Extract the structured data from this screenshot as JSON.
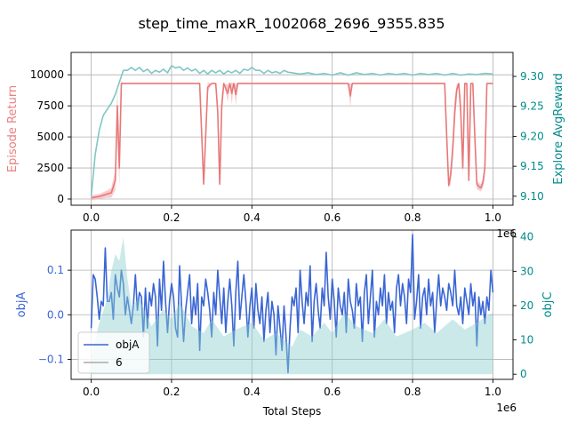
{
  "figure": {
    "title": "step_time_maxR_1002068_2696_9355.835"
  },
  "chart_data": [
    {
      "type": "line",
      "panel": "top",
      "xlabel": "",
      "x_exponent_label": "1e6",
      "xlim": [
        -0.05,
        1.05
      ],
      "xticks": [
        0.0,
        0.2,
        0.4,
        0.6,
        0.8,
        1.0
      ],
      "xtick_labels": [
        "0.0",
        "0.2",
        "0.4",
        "0.6",
        "0.8",
        "1.0"
      ],
      "grid": true,
      "left_axis": {
        "ylabel": "Episode Return",
        "color": "#e88080",
        "ylim": [
          -500,
          11800
        ],
        "ticks": [
          0,
          2500,
          5000,
          7500,
          10000
        ],
        "tick_labels": [
          "0",
          "2500",
          "5000",
          "7500",
          "10000"
        ]
      },
      "right_axis": {
        "ylabel": "Explore AvgReward",
        "color": "#008b8b",
        "ylim": [
          9.085,
          9.34
        ],
        "ticks": [
          9.1,
          9.15,
          9.2,
          9.25,
          9.3
        ],
        "tick_labels": [
          "9.10",
          "9.15",
          "9.20",
          "9.25",
          "9.30"
        ]
      },
      "series": [
        {
          "axis": "left",
          "color": "#e87878",
          "band_color": "#f4b8bc",
          "x": [
            0.0,
            0.01,
            0.02,
            0.03,
            0.04,
            0.05,
            0.06,
            0.065,
            0.07,
            0.075,
            0.08,
            0.1,
            0.15,
            0.2,
            0.25,
            0.27,
            0.28,
            0.29,
            0.3,
            0.31,
            0.315,
            0.32,
            0.325,
            0.33,
            0.34,
            0.345,
            0.35,
            0.355,
            0.36,
            0.365,
            0.37,
            0.38,
            0.5,
            0.6,
            0.64,
            0.645,
            0.65,
            0.7,
            0.8,
            0.88,
            0.885,
            0.89,
            0.895,
            0.9,
            0.905,
            0.91,
            0.915,
            0.92,
            0.925,
            0.93,
            0.935,
            0.94,
            0.945,
            0.95,
            0.955,
            0.96,
            0.965,
            0.97,
            0.975,
            0.98,
            0.985,
            0.99,
            0.995,
            1.0
          ],
          "y": [
            100,
            150,
            200,
            300,
            400,
            500,
            1500,
            7500,
            2500,
            9300,
            9300,
            9300,
            9300,
            9300,
            9300,
            9300,
            1200,
            9000,
            9300,
            9300,
            7000,
            1200,
            7500,
            9300,
            8500,
            9300,
            8500,
            9300,
            8400,
            9300,
            9300,
            9300,
            9300,
            9300,
            9300,
            8300,
            9300,
            9300,
            9300,
            9300,
            5000,
            1100,
            2000,
            4000,
            7000,
            8800,
            9300,
            7000,
            2500,
            9300,
            9300,
            1500,
            9300,
            9300,
            5000,
            1200,
            1000,
            900,
            1300,
            2500,
            9300,
            9300,
            9300,
            9300
          ],
          "band": [
            200,
            200,
            200,
            250,
            300,
            400,
            800,
            1500,
            1500,
            200,
            0,
            0,
            0,
            0,
            0,
            0,
            200,
            400,
            0,
            0,
            800,
            200,
            1000,
            0,
            700,
            0,
            900,
            0,
            900,
            0,
            0,
            0,
            0,
            0,
            0,
            1000,
            0,
            0,
            0,
            0,
            800,
            200,
            800,
            1000,
            1200,
            500,
            0,
            1200,
            700,
            0,
            0,
            400,
            0,
            0,
            1200,
            400,
            300,
            300,
            400,
            800,
            0,
            0,
            0,
            0
          ]
        },
        {
          "axis": "right",
          "color": "#7fc7c5",
          "x": [
            0.0,
            0.01,
            0.02,
            0.03,
            0.04,
            0.05,
            0.06,
            0.07,
            0.08,
            0.09,
            0.1,
            0.11,
            0.12,
            0.13,
            0.14,
            0.15,
            0.16,
            0.17,
            0.18,
            0.19,
            0.2,
            0.21,
            0.22,
            0.23,
            0.24,
            0.25,
            0.26,
            0.27,
            0.28,
            0.29,
            0.3,
            0.31,
            0.32,
            0.33,
            0.34,
            0.35,
            0.36,
            0.37,
            0.38,
            0.39,
            0.4,
            0.41,
            0.42,
            0.43,
            0.44,
            0.45,
            0.46,
            0.47,
            0.48,
            0.49,
            0.5,
            0.52,
            0.54,
            0.56,
            0.58,
            0.6,
            0.62,
            0.64,
            0.66,
            0.68,
            0.7,
            0.72,
            0.74,
            0.76,
            0.78,
            0.8,
            0.82,
            0.84,
            0.86,
            0.88,
            0.9,
            0.92,
            0.94,
            0.96,
            0.98,
            1.0
          ],
          "y": [
            9.1,
            9.17,
            9.21,
            9.235,
            9.245,
            9.255,
            9.27,
            9.29,
            9.31,
            9.31,
            9.315,
            9.31,
            9.315,
            9.308,
            9.312,
            9.305,
            9.31,
            9.307,
            9.312,
            9.306,
            9.318,
            9.314,
            9.316,
            9.31,
            9.314,
            9.309,
            9.312,
            9.305,
            9.31,
            9.304,
            9.31,
            9.306,
            9.31,
            9.304,
            9.309,
            9.306,
            9.31,
            9.305,
            9.312,
            9.31,
            9.315,
            9.31,
            9.31,
            9.305,
            9.31,
            9.306,
            9.308,
            9.305,
            9.31,
            9.307,
            9.306,
            9.304,
            9.306,
            9.303,
            9.305,
            9.302,
            9.306,
            9.302,
            9.306,
            9.303,
            9.305,
            9.302,
            9.305,
            9.303,
            9.305,
            9.302,
            9.305,
            9.303,
            9.305,
            9.302,
            9.305,
            9.302,
            9.304,
            9.303,
            9.305,
            9.304
          ]
        }
      ]
    },
    {
      "type": "line",
      "panel": "bottom",
      "xlabel": "Total Steps",
      "x_exponent_label": "1e6",
      "xlim": [
        -0.05,
        1.05
      ],
      "xticks": [
        0.0,
        0.2,
        0.4,
        0.6,
        0.8,
        1.0
      ],
      "xtick_labels": [
        "0.0",
        "0.2",
        "0.4",
        "0.6",
        "0.8",
        "1.0"
      ],
      "grid": true,
      "left_axis": {
        "ylabel": "objA",
        "color": "#3a66d4",
        "ylim": [
          -0.145,
          0.19
        ],
        "ticks": [
          -0.1,
          0.0,
          0.1
        ],
        "tick_labels": [
          "−0.1",
          "0.0",
          "0.1"
        ]
      },
      "right_axis": {
        "ylabel": "objC",
        "color": "#008b8b",
        "ylim": [
          -1.5,
          42
        ],
        "ticks": [
          0,
          10,
          20,
          30,
          40
        ],
        "tick_labels": [
          "0",
          "10",
          "20",
          "30",
          "40"
        ]
      },
      "legend": {
        "placement": "lower-left",
        "entries": [
          {
            "label": "objA",
            "color": "#3a66d4"
          },
          {
            "label": "6",
            "color": "#aaaaaa"
          }
        ]
      },
      "series": [
        {
          "name": "objA",
          "axis": "left",
          "color": "#3a66d4",
          "x": [
            0.0,
            0.005,
            0.01,
            0.015,
            0.02,
            0.025,
            0.03,
            0.035,
            0.04,
            0.045,
            0.05,
            0.055,
            0.06,
            0.065,
            0.07,
            0.075,
            0.08,
            0.085,
            0.09,
            0.095,
            0.1,
            0.105,
            0.11,
            0.115,
            0.12,
            0.125,
            0.13,
            0.135,
            0.14,
            0.145,
            0.15,
            0.155,
            0.16,
            0.165,
            0.17,
            0.175,
            0.18,
            0.185,
            0.19,
            0.195,
            0.2,
            0.205,
            0.21,
            0.215,
            0.22,
            0.225,
            0.23,
            0.235,
            0.24,
            0.245,
            0.25,
            0.255,
            0.26,
            0.265,
            0.27,
            0.275,
            0.28,
            0.285,
            0.29,
            0.295,
            0.3,
            0.305,
            0.31,
            0.315,
            0.32,
            0.325,
            0.33,
            0.335,
            0.34,
            0.345,
            0.35,
            0.355,
            0.36,
            0.365,
            0.37,
            0.375,
            0.38,
            0.385,
            0.39,
            0.395,
            0.4,
            0.405,
            0.41,
            0.415,
            0.42,
            0.425,
            0.43,
            0.435,
            0.44,
            0.445,
            0.45,
            0.455,
            0.46,
            0.465,
            0.47,
            0.475,
            0.48,
            0.485,
            0.49,
            0.495,
            0.5,
            0.505,
            0.51,
            0.515,
            0.52,
            0.525,
            0.53,
            0.535,
            0.54,
            0.545,
            0.55,
            0.555,
            0.56,
            0.565,
            0.57,
            0.575,
            0.58,
            0.585,
            0.59,
            0.595,
            0.6,
            0.605,
            0.61,
            0.615,
            0.62,
            0.625,
            0.63,
            0.635,
            0.64,
            0.645,
            0.65,
            0.655,
            0.66,
            0.665,
            0.67,
            0.675,
            0.68,
            0.685,
            0.69,
            0.695,
            0.7,
            0.705,
            0.71,
            0.715,
            0.72,
            0.725,
            0.73,
            0.735,
            0.74,
            0.745,
            0.75,
            0.755,
            0.76,
            0.765,
            0.77,
            0.775,
            0.78,
            0.785,
            0.79,
            0.795,
            0.8,
            0.805,
            0.81,
            0.815,
            0.82,
            0.825,
            0.83,
            0.835,
            0.84,
            0.845,
            0.85,
            0.855,
            0.86,
            0.865,
            0.87,
            0.875,
            0.88,
            0.885,
            0.89,
            0.895,
            0.9,
            0.905,
            0.91,
            0.915,
            0.92,
            0.925,
            0.93,
            0.935,
            0.94,
            0.945,
            0.95,
            0.955,
            0.96,
            0.965,
            0.97,
            0.975,
            0.98,
            0.985,
            0.99,
            0.995,
            1.0
          ],
          "y": [
            -0.03,
            0.09,
            0.08,
            0.04,
            -0.01,
            0.03,
            0.02,
            0.15,
            0.03,
            0.03,
            0.05,
            -0.01,
            0.09,
            0.06,
            0.04,
            0.1,
            0.07,
            0.0,
            0.04,
            0.01,
            -0.02,
            0.02,
            0.09,
            0.01,
            0.05,
            0.04,
            -0.05,
            0.06,
            -0.03,
            0.05,
            0.02,
            0.07,
            0.04,
            -0.07,
            0.08,
            0.01,
            0.12,
            0.03,
            -0.04,
            0.03,
            0.07,
            0.04,
            -0.03,
            -0.05,
            0.11,
            0.02,
            -0.06,
            0.01,
            0.05,
            0.09,
            -0.02,
            0.04,
            0.0,
            0.07,
            -0.08,
            0.04,
            0.02,
            0.08,
            0.05,
            0.01,
            -0.05,
            0.05,
            0.0,
            0.1,
            0.04,
            -0.02,
            0.06,
            -0.04,
            0.03,
            0.08,
            0.02,
            -0.07,
            0.05,
            0.12,
            -0.01,
            0.04,
            0.09,
            0.03,
            -0.05,
            0.02,
            0.06,
            -0.03,
            0.07,
            0.01,
            -0.02,
            0.04,
            -0.06,
            0.01,
            0.05,
            -0.04,
            0.03,
            0.0,
            -0.09,
            0.02,
            -0.03,
            -0.08,
            0.02,
            -0.05,
            -0.13,
            -0.03,
            0.04,
            0.02,
            0.06,
            -0.04,
            0.1,
            0.03,
            -0.02,
            0.05,
            0.02,
            0.11,
            -0.06,
            0.03,
            0.07,
            0.01,
            -0.03,
            0.06,
            0.02,
            0.14,
            0.04,
            -0.01,
            0.08,
            0.03,
            -0.05,
            0.06,
            0.02,
            0.0,
            0.05,
            -0.04,
            0.08,
            0.03,
            0.01,
            -0.03,
            0.07,
            0.02,
            0.04,
            -0.06,
            0.05,
            0.09,
            -0.02,
            0.04,
            0.1,
            -0.05,
            0.03,
            0.0,
            0.06,
            0.02,
            0.09,
            -0.02,
            0.05,
            0.01,
            0.03,
            -0.04,
            0.06,
            0.09,
            0.02,
            0.07,
            0.04,
            -0.02,
            0.08,
            0.05,
            0.18,
            -0.01,
            0.03,
            0.09,
            -0.03,
            0.04,
            0.06,
            0.0,
            0.08,
            0.02,
            0.05,
            -0.04,
            0.03,
            0.09,
            0.02,
            0.06,
            0.04,
            0.01,
            0.07,
            0.05,
            0.02,
            0.1,
            0.02,
            0.0,
            0.04,
            -0.02,
            0.06,
            0.03,
            0.0,
            0.07,
            0.02,
            0.05,
            -0.07,
            0.04,
            0.0,
            0.03,
            -0.02,
            0.04,
            0.01,
            0.1,
            0.05
          ]
        },
        {
          "name": "6",
          "axis": "right",
          "type": "area",
          "color": "#8ccfcf",
          "x": [
            0.0,
            0.02,
            0.04,
            0.05,
            0.06,
            0.07,
            0.08,
            0.09,
            0.1,
            0.12,
            0.15,
            0.18,
            0.2,
            0.22,
            0.25,
            0.28,
            0.3,
            0.33,
            0.36,
            0.4,
            0.43,
            0.46,
            0.5,
            0.52,
            0.55,
            0.58,
            0.6,
            0.63,
            0.66,
            0.7,
            0.73,
            0.76,
            0.8,
            0.83,
            0.86,
            0.9,
            0.93,
            0.96,
            1.0
          ],
          "y": [
            5,
            15,
            22,
            30,
            35,
            33,
            40,
            28,
            20,
            22,
            14,
            19,
            16,
            21,
            14,
            12,
            16,
            11,
            13,
            15,
            10,
            12,
            8,
            13,
            11,
            15,
            12,
            18,
            14,
            12,
            16,
            11,
            13,
            15,
            12,
            16,
            13,
            15,
            18
          ]
        }
      ]
    }
  ]
}
